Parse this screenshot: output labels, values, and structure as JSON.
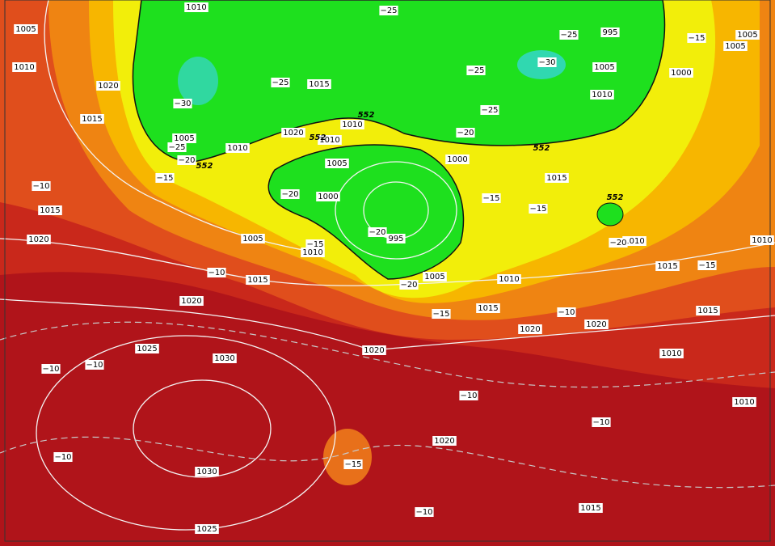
{
  "isobar_labels": [
    "1010",
    "1005",
    "1010",
    "1020",
    "1015",
    "1015",
    "1005",
    "1010",
    "1020",
    "1010",
    "1010",
    "995",
    "1005",
    "1010",
    "1000",
    "1005",
    "1005",
    "1005",
    "1000",
    "995",
    "1000",
    "1015",
    "1005",
    "1010",
    "1015",
    "1020",
    "1015",
    "1005",
    "1010",
    "1015",
    "1010",
    "1015",
    "1020",
    "1015",
    "1020",
    "1020",
    "1010",
    "1020",
    "1025",
    "1030",
    "1010",
    "1020",
    "1030",
    "1015",
    "1025",
    "1010"
  ],
  "temperature_labels": [
    "−25",
    "−25",
    "−30",
    "−25",
    "−20",
    "−15",
    "−25",
    "−30",
    "−25",
    "−25",
    "−20",
    "−15",
    "−20",
    "−20",
    "−15",
    "−15",
    "−15",
    "−20",
    "−10",
    "−20",
    "−15",
    "−10",
    "−15",
    "−10",
    "−10",
    "−10",
    "−10",
    "−10",
    "−10",
    "−15",
    "−10"
  ],
  "height_labels": [
    "552",
    "552",
    "552",
    "552",
    "552"
  ]
}
